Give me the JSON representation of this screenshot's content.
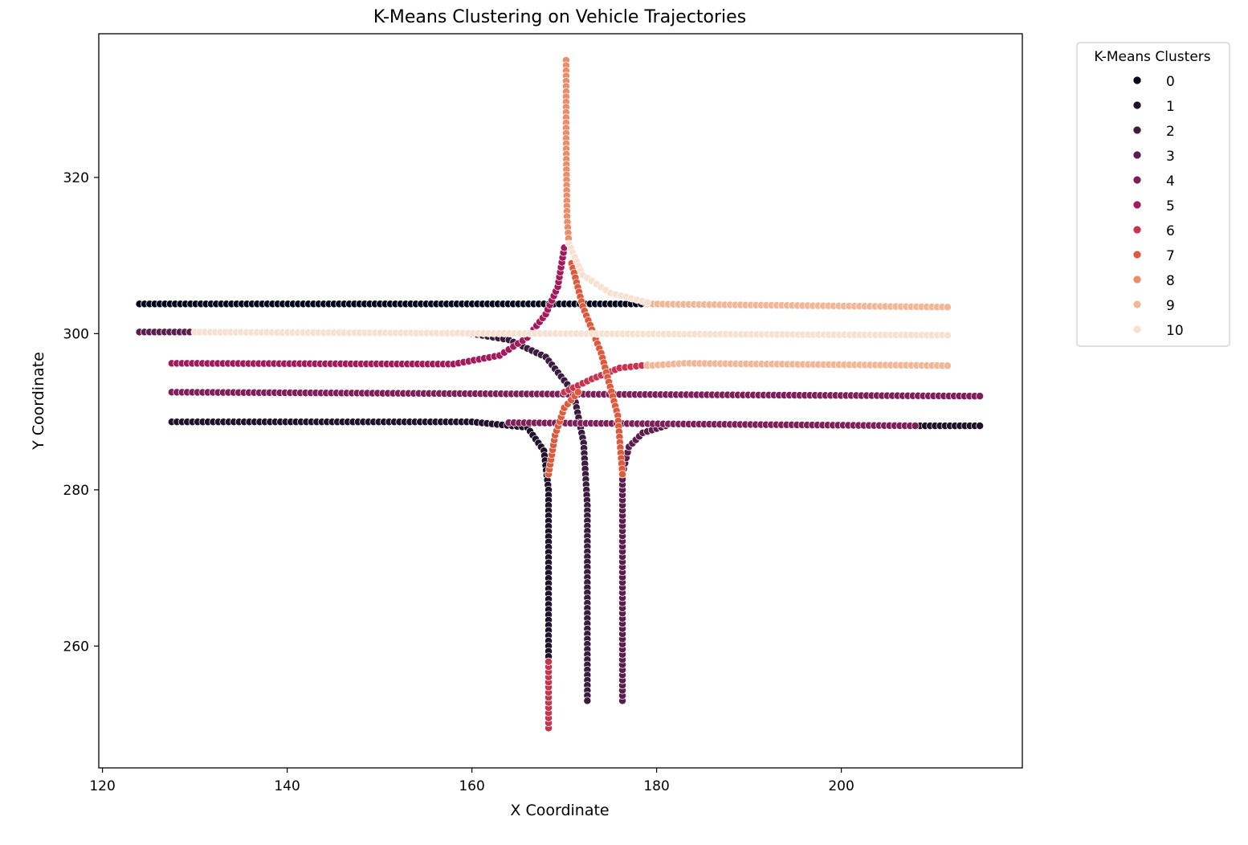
{
  "chart_data": {
    "type": "scatter",
    "title": "K-Means Clustering on Vehicle Trajectories",
    "xlabel": "X Coordinate",
    "ylabel": "Y Coordinate",
    "xlim": [
      119.6,
      219.6
    ],
    "ylim": [
      244.4,
      338.4
    ],
    "xticks": [
      120,
      140,
      160,
      180,
      200
    ],
    "yticks": [
      260,
      280,
      300,
      320
    ],
    "grid": false,
    "legend": {
      "title": "K-Means Clusters",
      "placement": "outside-top-right",
      "entries": [
        "0",
        "1",
        "2",
        "3",
        "4",
        "5",
        "6",
        "7",
        "8",
        "9",
        "10"
      ]
    },
    "cluster_colors": [
      "#03051a",
      "#1e1129",
      "#3b1c3e",
      "#5a1e4d",
      "#7d1f59",
      "#a11a5b",
      "#c8334f",
      "#dc5b3f",
      "#e98d6b",
      "#f1b797",
      "#f7e1d3"
    ],
    "series": [
      {
        "name": "0",
        "segments": [
          [
            [
              124,
              303.8
            ],
            [
              180,
              303.8
            ]
          ]
        ]
      },
      {
        "name": "1",
        "segments": [
          [
            [
              127.5,
              288.7
            ],
            [
              160,
              288.7
            ],
            [
              166,
              288
            ],
            [
              167.8,
              285
            ],
            [
              168.3,
              280
            ],
            [
              168.3,
              258
            ]
          ],
          [
            [
              208,
              288.2
            ],
            [
              215,
              288.2
            ]
          ]
        ]
      },
      {
        "name": "2",
        "segments": [
          [
            [
              160,
              300
            ],
            [
              164,
              299.2
            ],
            [
              168,
              297
            ],
            [
              171,
              292.5
            ],
            [
              172.1,
              286
            ],
            [
              172.5,
              278
            ],
            [
              172.5,
              253
            ]
          ]
        ]
      },
      {
        "name": "3",
        "segments": [
          [
            [
              124,
              300.2
            ],
            [
              130,
              300.2
            ]
          ],
          [
            [
              176.3,
              253
            ],
            [
              176.3,
              282
            ],
            [
              177,
              285.5
            ],
            [
              178.5,
              287.3
            ],
            [
              181,
              288.2
            ]
          ]
        ]
      },
      {
        "name": "4",
        "segments": [
          [
            [
              127.5,
              292.5
            ],
            [
              215,
              292
            ]
          ],
          [
            [
              164,
              288.6
            ],
            [
              208,
              288.2
            ]
          ]
        ]
      },
      {
        "name": "5",
        "segments": [
          [
            [
              127.5,
              296.2
            ],
            [
              158,
              296.1
            ],
            [
              163,
              297.2
            ],
            [
              166,
              299.5
            ],
            [
              168,
              302.5
            ],
            [
              169.3,
              306
            ],
            [
              170,
              311
            ]
          ]
        ]
      },
      {
        "name": "6",
        "segments": [
          [
            [
              168.3,
              249.5
            ],
            [
              168.3,
              258
            ]
          ],
          [
            [
              170,
              292.5
            ],
            [
              173,
              294.2
            ],
            [
              176,
              295.6
            ],
            [
              179,
              296
            ]
          ]
        ]
      },
      {
        "name": "7",
        "segments": [
          [
            [
              170.8,
              309
            ],
            [
              172,
              303.5
            ],
            [
              174,
              297.5
            ],
            [
              175.8,
              289.5
            ],
            [
              176.3,
              282
            ]
          ],
          [
            [
              168.3,
              282
            ],
            [
              169,
              287
            ],
            [
              170,
              290.5
            ],
            [
              171.5,
              292.5
            ]
          ]
        ]
      },
      {
        "name": "8",
        "segments": [
          [
            [
              170.2,
              335
            ],
            [
              170.2,
              325
            ],
            [
              170.3,
              315
            ],
            [
              170.5,
              311.5
            ]
          ]
        ]
      },
      {
        "name": "9",
        "segments": [
          [
            [
              179,
              303.8
            ],
            [
              211.5,
              303.4
            ]
          ],
          [
            [
              179,
              295.9
            ],
            [
              183,
              296.2
            ],
            [
              211.5,
              295.9
            ]
          ]
        ]
      },
      {
        "name": "10",
        "segments": [
          [
            [
              130,
              300.2
            ],
            [
              211.5,
              299.8
            ]
          ],
          [
            [
              170.5,
              311.5
            ],
            [
              172,
              307.5
            ],
            [
              175,
              305.2
            ],
            [
              179,
              304
            ]
          ]
        ]
      }
    ]
  }
}
